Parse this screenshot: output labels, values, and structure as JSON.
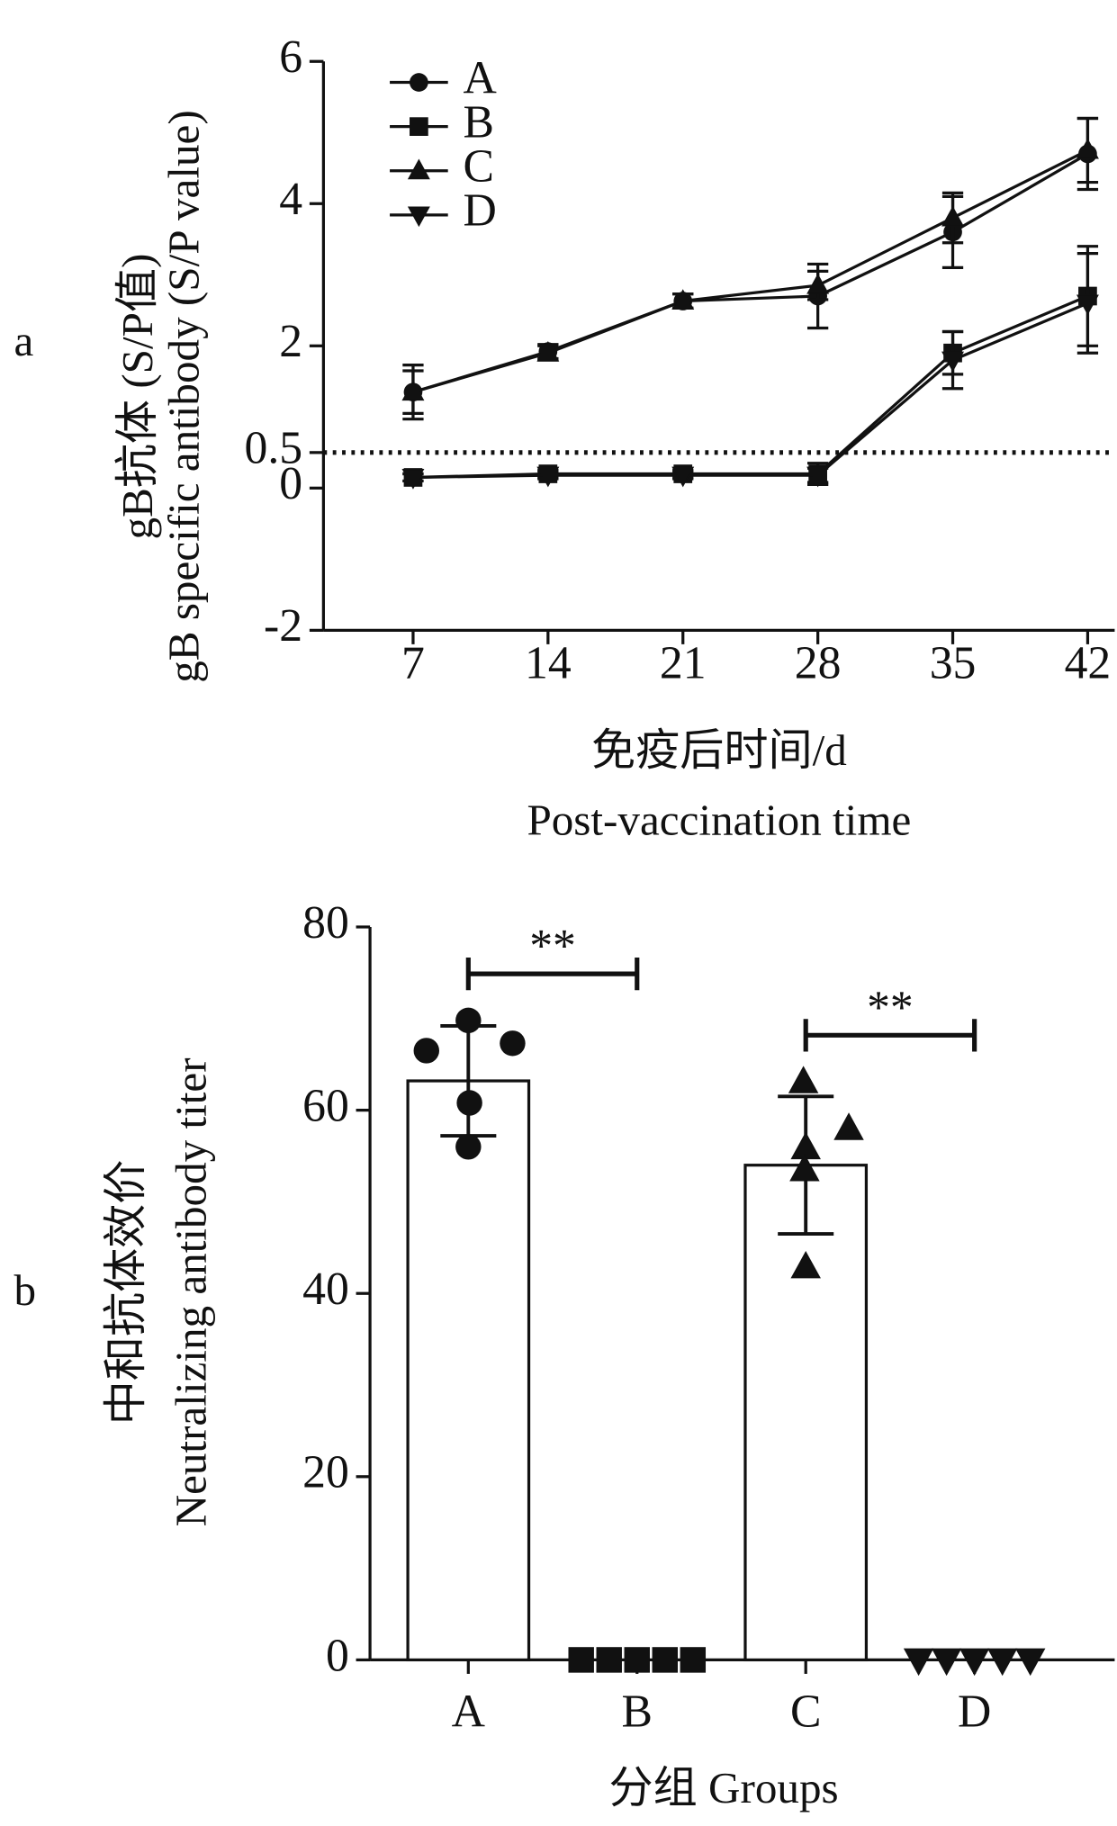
{
  "chart_data": [
    {
      "type": "line",
      "panel": "a",
      "ylabel": [
        "gB抗体 (S/P值)",
        "gB specific antibody (S/P value)"
      ],
      "xlabel": [
        "免疫后时间/d",
        "Post-vaccination time"
      ],
      "x": [
        7,
        14,
        21,
        28,
        35,
        42
      ],
      "xlim": [
        2.35,
        43.4
      ],
      "xticks": [
        7,
        14,
        21,
        28,
        35,
        42
      ],
      "ylim": [
        -2,
        6
      ],
      "yticks": [
        -2,
        0,
        0.5,
        2,
        4,
        6
      ],
      "threshold": 0.5,
      "legend": "top-left",
      "series": [
        {
          "name": "A",
          "color": "#111111",
          "marker": "circle",
          "values": [
            1.35,
            1.92,
            2.63,
            2.7,
            3.6,
            4.7
          ],
          "errors": [
            0.38,
            0.1,
            0.1,
            0.45,
            0.5,
            0.5
          ]
        },
        {
          "name": "B",
          "color": "#111111",
          "marker": "square",
          "values": [
            0.15,
            0.2,
            0.2,
            0.2,
            1.9,
            2.7
          ],
          "errors": [
            0.05,
            0.05,
            0.05,
            0.15,
            0.3,
            0.7
          ]
        },
        {
          "name": "C",
          "color": "#111111",
          "marker": "triangle",
          "values": [
            1.35,
            1.9,
            2.63,
            2.85,
            3.8,
            4.75
          ],
          "errors": [
            0.3,
            0.1,
            0.1,
            0.2,
            0.35,
            0.45
          ]
        },
        {
          "name": "D",
          "color": "#111111",
          "marker": "triangle-down",
          "values": [
            0.15,
            0.18,
            0.18,
            0.18,
            1.8,
            2.6
          ],
          "errors": [
            0.05,
            0.05,
            0.05,
            0.1,
            0.4,
            0.7
          ]
        }
      ]
    },
    {
      "type": "bar",
      "panel": "b",
      "ylabel": [
        "中和抗体效价",
        "Neutralizing antibody titer"
      ],
      "xlabel": "分组  Groups",
      "categories": [
        "A",
        "B",
        "C",
        "D"
      ],
      "values": [
        63.2,
        0,
        54,
        0
      ],
      "errors": [
        6,
        0,
        7.5,
        0
      ],
      "markers": [
        "circle",
        "square",
        "triangle",
        "triangle-down"
      ],
      "points": [
        [
          66.5,
          69.8,
          67.3,
          60.8,
          56
        ],
        [
          0,
          0,
          0,
          0,
          0
        ],
        [
          63.1,
          58,
          55.9,
          53.5,
          42.9
        ],
        [
          0,
          0,
          0,
          0,
          0
        ]
      ],
      "color": "#ffffff",
      "ylim": [
        0,
        80
      ],
      "yticks": [
        0,
        20,
        40,
        60,
        80
      ],
      "annotations": [
        "**",
        "**"
      ]
    }
  ]
}
